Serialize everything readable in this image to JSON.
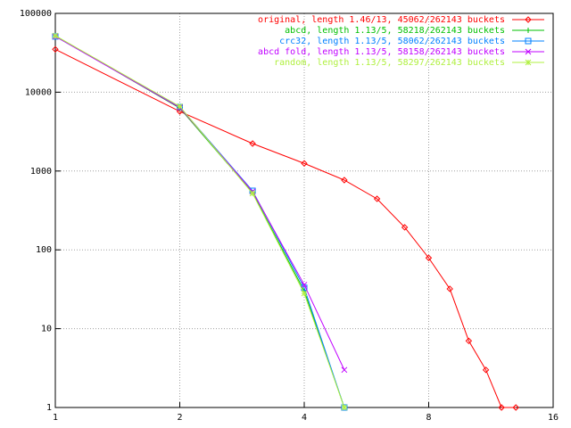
{
  "chart_data": {
    "type": "line",
    "xscale": "log",
    "yscale": "log",
    "grid": true,
    "legend": "top-right",
    "xlim": [
      1,
      16
    ],
    "xticks": [
      1,
      2,
      4,
      8,
      16
    ],
    "ylim": [
      1,
      100000
    ],
    "yticks": [
      1,
      10,
      100,
      1000,
      10000,
      100000
    ],
    "series": [
      {
        "name": "original, length 1.46/13, 45062/262143 buckets",
        "color": "#ff0000",
        "marker": "diamond",
        "x": [
          1,
          2,
          3,
          4,
          5,
          6,
          7,
          8,
          9,
          10,
          11,
          12,
          13
        ],
        "values": [
          35000,
          5700,
          2230,
          1250,
          767,
          444,
          193,
          79,
          32,
          7,
          3,
          1,
          1
        ]
      },
      {
        "name": "abcd, length 1.13/5, 58218/262143 buckets",
        "color": "#00c000",
        "marker": "plus",
        "x": [
          1,
          2,
          3,
          4,
          5
        ],
        "values": [
          52000,
          6300,
          530,
          30,
          1
        ]
      },
      {
        "name": "crc32, length 1.13/5, 58062/262143 buckets",
        "color": "#0080ff",
        "marker": "square",
        "x": [
          1,
          2,
          3,
          4,
          5
        ],
        "values": [
          51000,
          6500,
          560,
          33,
          1
        ]
      },
      {
        "name": "abcd fold, length 1.13/5, 58158/262143 buckets",
        "color": "#c000ff",
        "marker": "cross",
        "x": [
          1,
          2,
          3,
          4,
          5
        ],
        "values": [
          51000,
          6400,
          550,
          36,
          3
        ]
      },
      {
        "name": "random, length 1.13/5, 58297/262143 buckets",
        "color": "#b0f040",
        "marker": "star",
        "x": [
          1,
          2,
          3,
          4,
          5
        ],
        "values": [
          52000,
          6600,
          520,
          28,
          1
        ]
      }
    ]
  }
}
